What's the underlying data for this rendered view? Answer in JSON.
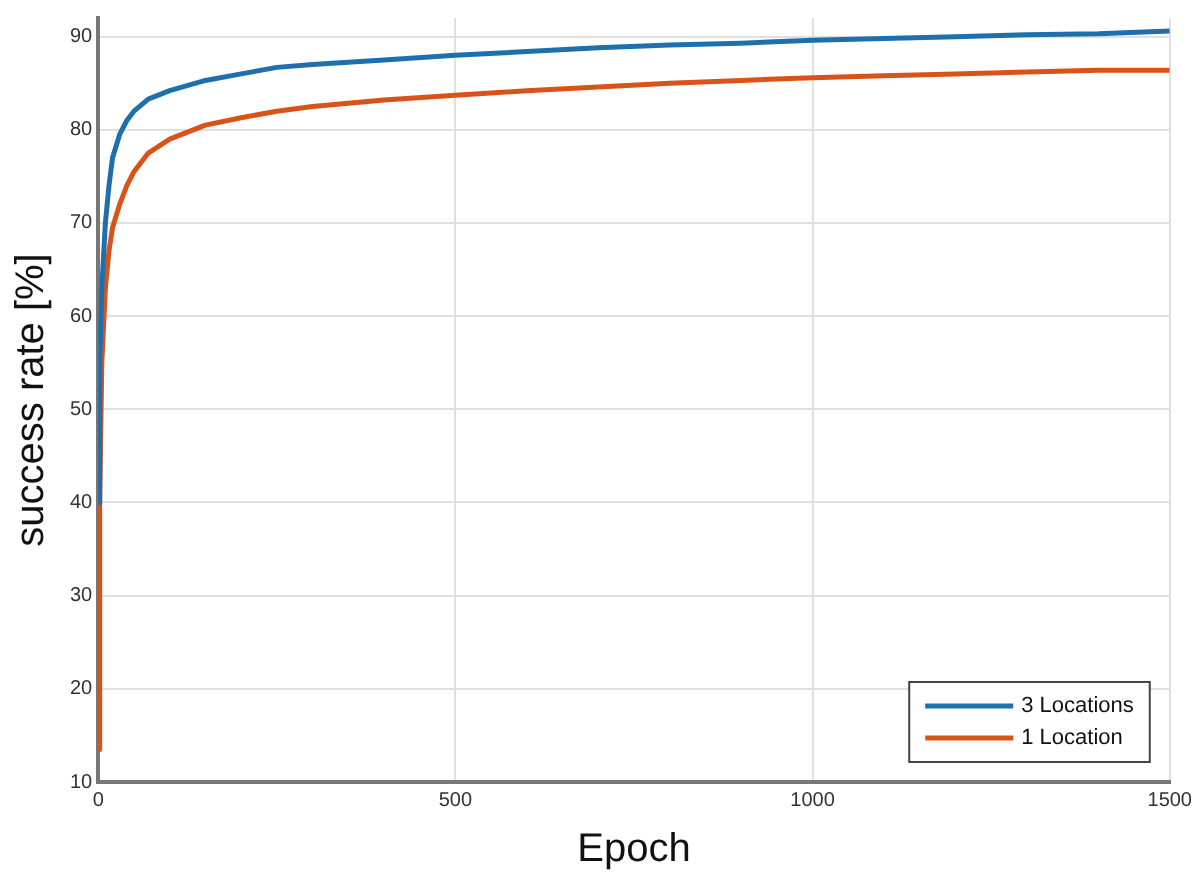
{
  "chart_data": {
    "type": "line",
    "xlabel": "Epoch",
    "ylabel": "success rate [%]",
    "xlim": [
      0,
      1500
    ],
    "xticks": [
      0,
      500,
      1000,
      1500
    ],
    "ylim": [
      10,
      92
    ],
    "yticks": [
      10,
      20,
      30,
      40,
      50,
      60,
      70,
      80,
      90
    ],
    "grid": true,
    "legend": "bottom right",
    "marker": "none",
    "line_style": "solid",
    "series": [
      {
        "name": "3 Locations",
        "color": "#1f6fad",
        "x": [
          0,
          2,
          5,
          10,
          15,
          20,
          30,
          40,
          50,
          70,
          100,
          150,
          200,
          250,
          300,
          400,
          500,
          600,
          700,
          800,
          900,
          1000,
          1100,
          1200,
          1300,
          1400,
          1500
        ],
        "values": [
          40,
          55,
          63,
          70,
          74,
          77,
          79.5,
          81,
          82,
          83.3,
          84.2,
          85.3,
          86,
          86.7,
          87,
          87.5,
          88,
          88.4,
          88.8,
          89.1,
          89.3,
          89.6,
          89.8,
          90,
          90.2,
          90.3,
          90.6
        ]
      },
      {
        "name": "1 Location",
        "color": "#d95319",
        "x": [
          0,
          2,
          5,
          10,
          15,
          20,
          30,
          40,
          50,
          70,
          100,
          150,
          200,
          250,
          300,
          400,
          500,
          600,
          700,
          800,
          900,
          1000,
          1100,
          1200,
          1300,
          1400,
          1500
        ],
        "values": [
          13.5,
          40,
          55,
          63,
          67,
          69.5,
          72,
          74,
          75.5,
          77.5,
          79,
          80.5,
          81.3,
          82,
          82.5,
          83.2,
          83.7,
          84.2,
          84.6,
          85,
          85.3,
          85.6,
          85.8,
          86,
          86.2,
          86.4,
          86.4
        ]
      }
    ]
  }
}
